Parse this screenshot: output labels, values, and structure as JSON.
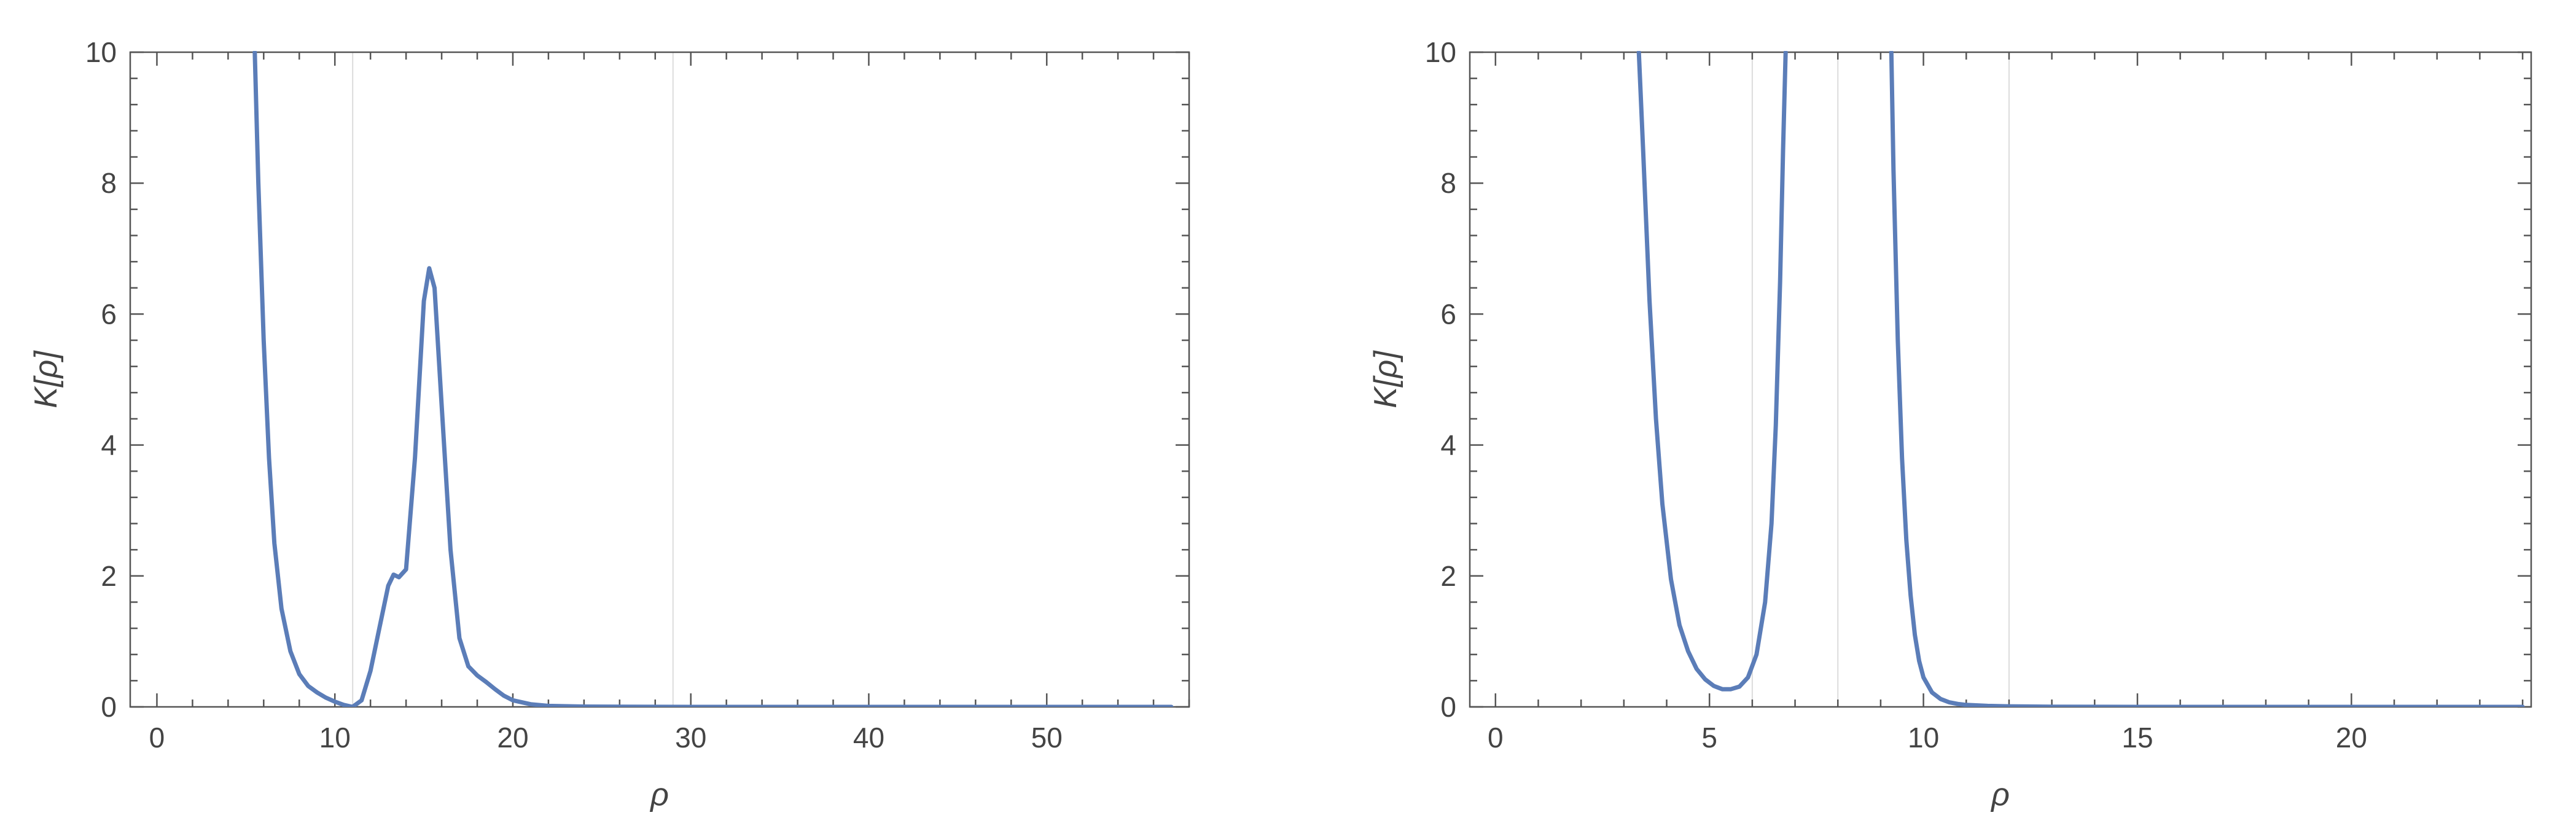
{
  "chart_data": [
    {
      "type": "line",
      "xlabel": "ρ",
      "ylabel": "K[ρ]",
      "xlim": [
        -1.5,
        58
      ],
      "ylim": [
        0,
        10
      ],
      "x_ticks": [
        0,
        10,
        20,
        30,
        40,
        50
      ],
      "y_ticks": [
        0,
        2,
        4,
        6,
        8,
        10
      ],
      "grid_lines_x": [
        11,
        29
      ],
      "grid": "vertical lines only",
      "line_color": "#5b7db8",
      "series": [
        {
          "x": [
            5.5,
            5.7,
            6.0,
            6.3,
            6.6,
            7.0,
            7.5,
            8.0,
            8.5,
            9.0,
            9.5,
            10.0,
            10.5,
            11.0,
            11.5,
            12.0,
            12.5,
            13.0,
            13.3,
            13.6,
            14.0,
            14.5,
            15.0,
            15.3,
            15.6,
            16.0,
            16.5,
            17.0,
            17.5,
            18.0,
            18.5,
            19.0,
            19.5,
            20.0,
            21.0,
            22.0,
            24.0,
            30.0,
            40.0,
            50.0,
            57.0
          ],
          "y": [
            10.0,
            8.0,
            5.6,
            3.8,
            2.5,
            1.5,
            0.85,
            0.5,
            0.32,
            0.22,
            0.14,
            0.08,
            0.03,
            0.0,
            0.1,
            0.55,
            1.2,
            1.85,
            2.02,
            1.98,
            2.1,
            3.8,
            6.2,
            6.7,
            6.4,
            4.6,
            2.4,
            1.05,
            0.62,
            0.48,
            0.38,
            0.27,
            0.17,
            0.1,
            0.04,
            0.015,
            0.005,
            0.0,
            0.0,
            0.0,
            0.0
          ]
        }
      ]
    },
    {
      "type": "line",
      "xlabel": "ρ",
      "ylabel": "K[ρ]",
      "xlim": [
        -0.6,
        24.2
      ],
      "ylim": [
        0,
        10
      ],
      "x_ticks": [
        0,
        5,
        10,
        15,
        20
      ],
      "y_ticks": [
        0,
        2,
        4,
        6,
        8,
        10
      ],
      "grid_lines_x": [
        6,
        8,
        12
      ],
      "grid": "vertical lines only",
      "line_color": "#5b7db8",
      "series": [
        {
          "x": [
            3.35,
            3.45,
            3.6,
            3.75,
            3.9,
            4.1,
            4.3,
            4.5,
            4.7,
            4.9,
            5.1,
            5.3,
            5.5,
            5.7,
            5.9,
            6.1,
            6.3,
            6.45,
            6.55,
            6.65,
            6.72,
            6.78
          ],
          "y": [
            10.0,
            8.5,
            6.2,
            4.4,
            3.1,
            1.95,
            1.25,
            0.85,
            0.58,
            0.42,
            0.32,
            0.27,
            0.27,
            0.31,
            0.45,
            0.8,
            1.6,
            2.8,
            4.3,
            6.5,
            8.5,
            10.0
          ]
        },
        {
          "x": [
            9.25,
            9.3,
            9.4,
            9.5,
            9.6,
            9.7,
            9.8,
            9.9,
            10.0,
            10.2,
            10.4,
            10.6,
            10.8,
            11.0,
            11.5,
            12.0,
            13.0,
            15.0,
            18.0,
            21.0,
            24.0
          ],
          "y": [
            10.0,
            8.2,
            5.6,
            3.8,
            2.55,
            1.7,
            1.1,
            0.7,
            0.45,
            0.22,
            0.12,
            0.07,
            0.045,
            0.03,
            0.015,
            0.008,
            0.003,
            0.0,
            0.0,
            0.0,
            0.0
          ]
        }
      ]
    }
  ]
}
